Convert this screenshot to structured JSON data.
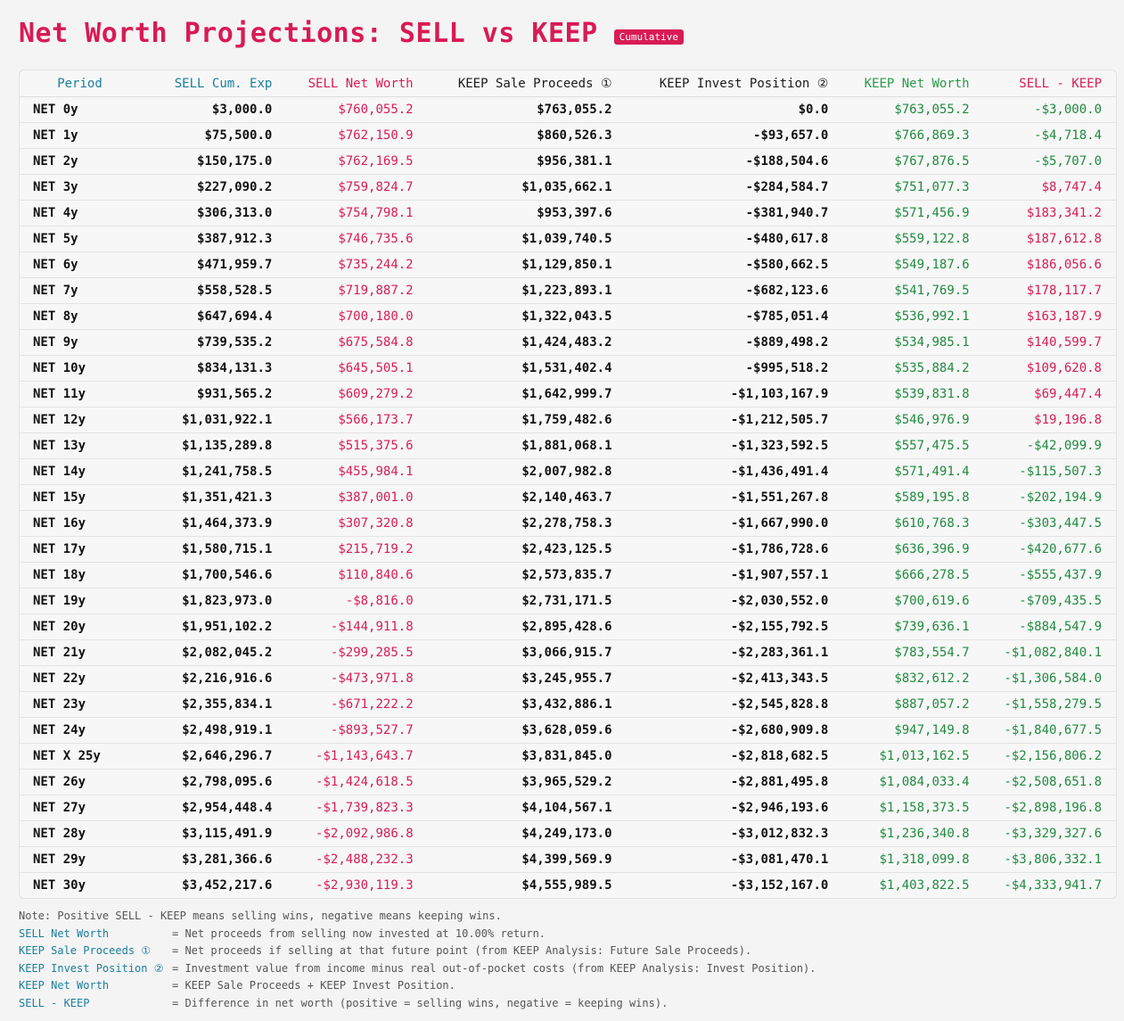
{
  "title": "Net Worth Projections: SELL vs KEEP",
  "badge": "Cumulative",
  "columns": [
    "Period",
    "SELL Cum. Exp",
    "SELL Net Worth",
    "KEEP Sale Proceeds ①",
    "KEEP Invest Position ②",
    "KEEP Net Worth",
    "SELL - KEEP"
  ],
  "rows": [
    [
      "NET 0y",
      "$3,000.0",
      "$760,055.2",
      "$763,055.2",
      "$0.0",
      "$763,055.2",
      "-$3,000.0"
    ],
    [
      "NET 1y",
      "$75,500.0",
      "$762,150.9",
      "$860,526.3",
      "-$93,657.0",
      "$766,869.3",
      "-$4,718.4"
    ],
    [
      "NET 2y",
      "$150,175.0",
      "$762,169.5",
      "$956,381.1",
      "-$188,504.6",
      "$767,876.5",
      "-$5,707.0"
    ],
    [
      "NET 3y",
      "$227,090.2",
      "$759,824.7",
      "$1,035,662.1",
      "-$284,584.7",
      "$751,077.3",
      "$8,747.4"
    ],
    [
      "NET 4y",
      "$306,313.0",
      "$754,798.1",
      "$953,397.6",
      "-$381,940.7",
      "$571,456.9",
      "$183,341.2"
    ],
    [
      "NET 5y",
      "$387,912.3",
      "$746,735.6",
      "$1,039,740.5",
      "-$480,617.8",
      "$559,122.8",
      "$187,612.8"
    ],
    [
      "NET 6y",
      "$471,959.7",
      "$735,244.2",
      "$1,129,850.1",
      "-$580,662.5",
      "$549,187.6",
      "$186,056.6"
    ],
    [
      "NET 7y",
      "$558,528.5",
      "$719,887.2",
      "$1,223,893.1",
      "-$682,123.6",
      "$541,769.5",
      "$178,117.7"
    ],
    [
      "NET 8y",
      "$647,694.4",
      "$700,180.0",
      "$1,322,043.5",
      "-$785,051.4",
      "$536,992.1",
      "$163,187.9"
    ],
    [
      "NET 9y",
      "$739,535.2",
      "$675,584.8",
      "$1,424,483.2",
      "-$889,498.2",
      "$534,985.1",
      "$140,599.7"
    ],
    [
      "NET 10y",
      "$834,131.3",
      "$645,505.1",
      "$1,531,402.4",
      "-$995,518.2",
      "$535,884.2",
      "$109,620.8"
    ],
    [
      "NET 11y",
      "$931,565.2",
      "$609,279.2",
      "$1,642,999.7",
      "-$1,103,167.9",
      "$539,831.8",
      "$69,447.4"
    ],
    [
      "NET 12y",
      "$1,031,922.1",
      "$566,173.7",
      "$1,759,482.6",
      "-$1,212,505.7",
      "$546,976.9",
      "$19,196.8"
    ],
    [
      "NET 13y",
      "$1,135,289.8",
      "$515,375.6",
      "$1,881,068.1",
      "-$1,323,592.5",
      "$557,475.5",
      "-$42,099.9"
    ],
    [
      "NET 14y",
      "$1,241,758.5",
      "$455,984.1",
      "$2,007,982.8",
      "-$1,436,491.4",
      "$571,491.4",
      "-$115,507.3"
    ],
    [
      "NET 15y",
      "$1,351,421.3",
      "$387,001.0",
      "$2,140,463.7",
      "-$1,551,267.8",
      "$589,195.8",
      "-$202,194.9"
    ],
    [
      "NET 16y",
      "$1,464,373.9",
      "$307,320.8",
      "$2,278,758.3",
      "-$1,667,990.0",
      "$610,768.3",
      "-$303,447.5"
    ],
    [
      "NET 17y",
      "$1,580,715.1",
      "$215,719.2",
      "$2,423,125.5",
      "-$1,786,728.6",
      "$636,396.9",
      "-$420,677.6"
    ],
    [
      "NET 18y",
      "$1,700,546.6",
      "$110,840.6",
      "$2,573,835.7",
      "-$1,907,557.1",
      "$666,278.5",
      "-$555,437.9"
    ],
    [
      "NET 19y",
      "$1,823,973.0",
      "-$8,816.0",
      "$2,731,171.5",
      "-$2,030,552.0",
      "$700,619.6",
      "-$709,435.5"
    ],
    [
      "NET 20y",
      "$1,951,102.2",
      "-$144,911.8",
      "$2,895,428.6",
      "-$2,155,792.5",
      "$739,636.1",
      "-$884,547.9"
    ],
    [
      "NET 21y",
      "$2,082,045.2",
      "-$299,285.5",
      "$3,066,915.7",
      "-$2,283,361.1",
      "$783,554.7",
      "-$1,082,840.1"
    ],
    [
      "NET 22y",
      "$2,216,916.6",
      "-$473,971.8",
      "$3,245,955.7",
      "-$2,413,343.5",
      "$832,612.2",
      "-$1,306,584.0"
    ],
    [
      "NET 23y",
      "$2,355,834.1",
      "-$671,222.2",
      "$3,432,886.1",
      "-$2,545,828.8",
      "$887,057.2",
      "-$1,558,279.5"
    ],
    [
      "NET 24y",
      "$2,498,919.1",
      "-$893,527.7",
      "$3,628,059.6",
      "-$2,680,909.8",
      "$947,149.8",
      "-$1,840,677.5"
    ],
    [
      "NET X 25y",
      "$2,646,296.7",
      "-$1,143,643.7",
      "$3,831,845.0",
      "-$2,818,682.5",
      "$1,013,162.5",
      "-$2,156,806.2"
    ],
    [
      "NET 26y",
      "$2,798,095.6",
      "-$1,424,618.5",
      "$3,965,529.2",
      "-$2,881,495.8",
      "$1,084,033.4",
      "-$2,508,651.8"
    ],
    [
      "NET 27y",
      "$2,954,448.4",
      "-$1,739,823.3",
      "$4,104,567.1",
      "-$2,946,193.6",
      "$1,158,373.5",
      "-$2,898,196.8"
    ],
    [
      "NET 28y",
      "$3,115,491.9",
      "-$2,092,986.8",
      "$4,249,173.0",
      "-$3,012,832.3",
      "$1,236,340.8",
      "-$3,329,327.6"
    ],
    [
      "NET 29y",
      "$3,281,366.6",
      "-$2,488,232.3",
      "$4,399,569.9",
      "-$3,081,470.1",
      "$1,318,099.8",
      "-$3,806,332.1"
    ],
    [
      "NET 30y",
      "$3,452,217.6",
      "-$2,930,119.3",
      "$4,555,989.5",
      "-$3,152,167.0",
      "$1,403,822.5",
      "-$4,333,941.7"
    ]
  ],
  "notes": {
    "intro": "Note: Positive SELL - KEEP means selling wins, negative means keeping wins.",
    "items": [
      {
        "key": "SELL Net Worth",
        "text": "= Net proceeds from selling now invested at 10.00% return."
      },
      {
        "key": "KEEP Sale Proceeds ①",
        "text": "= Net proceeds if selling at that future point (from KEEP Analysis: Future Sale Proceeds)."
      },
      {
        "key": "KEEP Invest Position ②",
        "text": "= Investment value from income minus real out-of-pocket costs (from KEEP Analysis: Invest Position)."
      },
      {
        "key": "KEEP Net Worth",
        "text": "= KEEP Sale Proceeds + KEEP Invest Position."
      },
      {
        "key": "SELL - KEEP",
        "text": "= Difference in net worth (positive = selling wins, negative = keeping wins)."
      }
    ]
  },
  "colors": {
    "pink": "#d81b54",
    "green": "#1f8a3f",
    "teal": "#1a7f9c",
    "background": "#f4f4f4"
  }
}
